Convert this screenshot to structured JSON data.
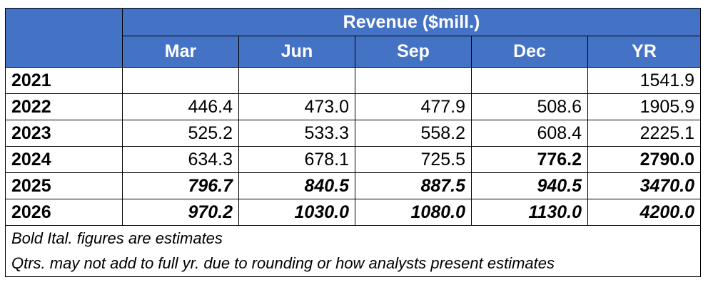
{
  "table": {
    "title": "Revenue ($mill.)",
    "columns": [
      "Mar",
      "Jun",
      "Sep",
      "Dec",
      "YR"
    ],
    "rows": [
      {
        "year": "2021",
        "values": [
          "",
          "",
          "",
          "",
          "1541.9"
        ],
        "style": [
          "",
          "",
          "",
          "",
          ""
        ]
      },
      {
        "year": "2022",
        "values": [
          "446.4",
          "473.0",
          "477.9",
          "508.6",
          "1905.9"
        ],
        "style": [
          "",
          "",
          "",
          "",
          ""
        ]
      },
      {
        "year": "2023",
        "values": [
          "525.2",
          "533.3",
          "558.2",
          "608.4",
          "2225.1"
        ],
        "style": [
          "",
          "",
          "",
          "",
          ""
        ]
      },
      {
        "year": "2024",
        "values": [
          "634.3",
          "678.1",
          "725.5",
          "776.2",
          "2790.0"
        ],
        "style": [
          "",
          "",
          "",
          "b",
          "b"
        ]
      },
      {
        "year": "2025",
        "values": [
          "796.7",
          "840.5",
          "887.5",
          "940.5",
          "3470.0"
        ],
        "style": [
          "bi",
          "bi",
          "bi",
          "bi",
          "bi"
        ]
      },
      {
        "year": "2026",
        "values": [
          "970.2",
          "1030.0",
          "1080.0",
          "1130.0",
          "4200.0"
        ],
        "style": [
          "bi",
          "bi",
          "bi",
          "bi",
          "bi"
        ]
      }
    ],
    "notes": [
      "Bold Ital. figures are estimates",
      "Qtrs. may not add to full yr. due to rounding or how analysts present estimates"
    ]
  }
}
